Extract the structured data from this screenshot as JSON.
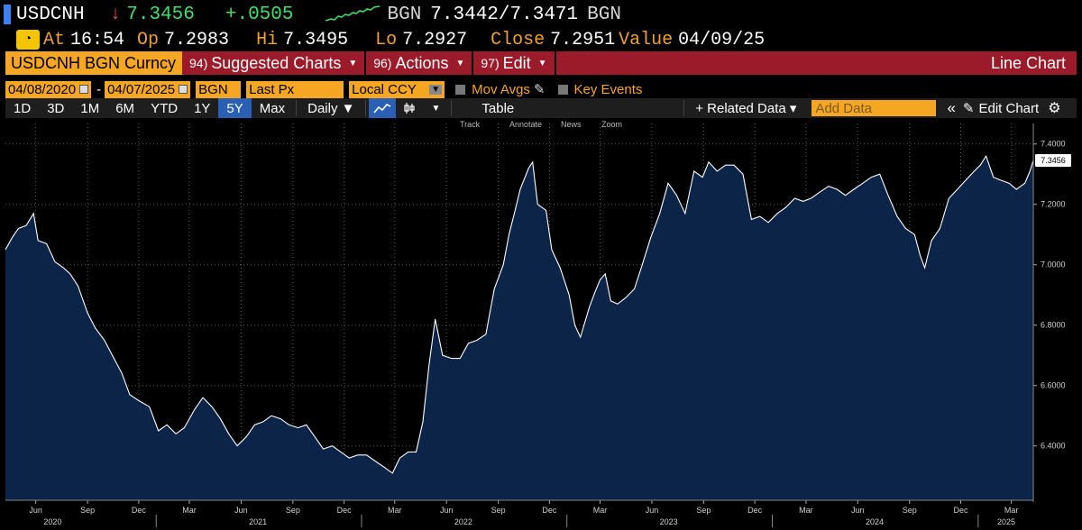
{
  "quote": {
    "ticker": "USDCNH",
    "arrow": "↓",
    "last": "7.3456",
    "change": "+.0505",
    "bid_source": "BGN",
    "bid_ask": "7.3442/7.3471",
    "ask_source": "BGN"
  },
  "detail": {
    "at_label": "At",
    "at_value": "16:54",
    "open_label": "Op",
    "open_value": "7.2983",
    "high_label": "Hi",
    "high_value": "7.3495",
    "low_label": "Lo",
    "low_value": "7.2927",
    "close_label": "Close",
    "close_value": "7.2951",
    "value_label": "Value",
    "value_date": "04/09/25"
  },
  "menubar": {
    "security": "USDCNH BGN Curncy",
    "suggested": {
      "num": "94)",
      "label": "Suggested Charts"
    },
    "actions": {
      "num": "96)",
      "label": "Actions"
    },
    "edit": {
      "num": "97)",
      "label": "Edit"
    },
    "chart_type": "Line Chart"
  },
  "params": {
    "start_date": "04/08/2020",
    "end_date": "04/07/2025",
    "source": "BGN",
    "field": "Last Px",
    "currency": "Local CCY",
    "mov_avgs": "Mov Avgs",
    "key_events": "Key Events"
  },
  "toolbar": {
    "ranges": [
      "1D",
      "3D",
      "1M",
      "6M",
      "YTD",
      "1Y",
      "5Y",
      "Max"
    ],
    "selected_range": "5Y",
    "frequency": "Daily ▼",
    "table": "Table",
    "related": "+ Related Data ▾",
    "add_data_placeholder": "Add Data",
    "collapse": "«",
    "edit_chart": "Edit Chart",
    "settings_icon": "gear-icon"
  },
  "chart_tools": [
    "Track",
    "Annotate",
    "News",
    "Zoom"
  ],
  "chart_data": {
    "type": "area",
    "x_range": [
      "2020-04-08",
      "2025-04-09"
    ],
    "ylim": [
      6.22,
      7.45
    ],
    "y_ticks": [
      "6.4000",
      "6.6000",
      "6.8000",
      "7.0000",
      "7.2000",
      "7.4000"
    ],
    "y_tick_values": [
      6.4,
      6.6,
      6.8,
      7.0,
      7.2,
      7.4
    ],
    "last_value_label": "7.3456",
    "month_ticks": [
      {
        "date": "2020-06-01",
        "label": "Jun"
      },
      {
        "date": "2020-09-01",
        "label": "Sep"
      },
      {
        "date": "2020-12-01",
        "label": "Dec"
      },
      {
        "date": "2021-03-01",
        "label": "Mar"
      },
      {
        "date": "2021-06-01",
        "label": "Jun"
      },
      {
        "date": "2021-09-01",
        "label": "Sep"
      },
      {
        "date": "2021-12-01",
        "label": "Dec"
      },
      {
        "date": "2022-03-01",
        "label": "Mar"
      },
      {
        "date": "2022-06-01",
        "label": "Jun"
      },
      {
        "date": "2022-09-01",
        "label": "Sep"
      },
      {
        "date": "2022-12-01",
        "label": "Dec"
      },
      {
        "date": "2023-03-01",
        "label": "Mar"
      },
      {
        "date": "2023-06-01",
        "label": "Jun"
      },
      {
        "date": "2023-09-01",
        "label": "Sep"
      },
      {
        "date": "2023-12-01",
        "label": "Dec"
      },
      {
        "date": "2024-03-01",
        "label": "Mar"
      },
      {
        "date": "2024-06-01",
        "label": "Jun"
      },
      {
        "date": "2024-09-01",
        "label": "Sep"
      },
      {
        "date": "2024-12-01",
        "label": "Dec"
      },
      {
        "date": "2025-03-01",
        "label": "Mar"
      }
    ],
    "year_ticks": [
      {
        "date": "2020-07-01",
        "label": "2020"
      },
      {
        "date": "2021-07-01",
        "label": "2021"
      },
      {
        "date": "2022-07-01",
        "label": "2022"
      },
      {
        "date": "2023-07-01",
        "label": "2023"
      },
      {
        "date": "2024-07-01",
        "label": "2024"
      },
      {
        "date": "2025-02-20",
        "label": "2025"
      }
    ],
    "year_boundaries": [
      "2021-01-01",
      "2022-01-01",
      "2023-01-01",
      "2024-01-01",
      "2025-01-01"
    ],
    "series": [
      {
        "points": [
          [
            "2020-04-08",
            7.05
          ],
          [
            "2020-04-20",
            7.09
          ],
          [
            "2020-05-01",
            7.12
          ],
          [
            "2020-05-15",
            7.13
          ],
          [
            "2020-05-28",
            7.17
          ],
          [
            "2020-06-05",
            7.08
          ],
          [
            "2020-06-20",
            7.07
          ],
          [
            "2020-07-05",
            7.01
          ],
          [
            "2020-07-20",
            6.99
          ],
          [
            "2020-08-01",
            6.97
          ],
          [
            "2020-08-15",
            6.93
          ],
          [
            "2020-09-01",
            6.84
          ],
          [
            "2020-09-15",
            6.79
          ],
          [
            "2020-10-01",
            6.75
          ],
          [
            "2020-10-15",
            6.7
          ],
          [
            "2020-11-01",
            6.64
          ],
          [
            "2020-11-15",
            6.57
          ],
          [
            "2020-12-01",
            6.55
          ],
          [
            "2020-12-20",
            6.53
          ],
          [
            "2021-01-05",
            6.45
          ],
          [
            "2021-01-20",
            6.47
          ],
          [
            "2021-02-05",
            6.44
          ],
          [
            "2021-02-20",
            6.46
          ],
          [
            "2021-03-10",
            6.52
          ],
          [
            "2021-03-25",
            6.56
          ],
          [
            "2021-04-10",
            6.53
          ],
          [
            "2021-04-25",
            6.49
          ],
          [
            "2021-05-10",
            6.44
          ],
          [
            "2021-05-25",
            6.4
          ],
          [
            "2021-06-10",
            6.43
          ],
          [
            "2021-06-25",
            6.47
          ],
          [
            "2021-07-10",
            6.48
          ],
          [
            "2021-07-25",
            6.5
          ],
          [
            "2021-08-10",
            6.49
          ],
          [
            "2021-08-25",
            6.47
          ],
          [
            "2021-09-10",
            6.46
          ],
          [
            "2021-09-25",
            6.47
          ],
          [
            "2021-10-10",
            6.43
          ],
          [
            "2021-10-25",
            6.39
          ],
          [
            "2021-11-10",
            6.4
          ],
          [
            "2021-11-25",
            6.38
          ],
          [
            "2021-12-10",
            6.36
          ],
          [
            "2021-12-25",
            6.37
          ],
          [
            "2022-01-10",
            6.37
          ],
          [
            "2022-01-25",
            6.35
          ],
          [
            "2022-02-10",
            6.33
          ],
          [
            "2022-02-25",
            6.31
          ],
          [
            "2022-03-10",
            6.36
          ],
          [
            "2022-03-25",
            6.38
          ],
          [
            "2022-04-08",
            6.38
          ],
          [
            "2022-04-20",
            6.48
          ],
          [
            "2022-05-01",
            6.67
          ],
          [
            "2022-05-12",
            6.82
          ],
          [
            "2022-05-25",
            6.7
          ],
          [
            "2022-06-10",
            6.69
          ],
          [
            "2022-06-25",
            6.69
          ],
          [
            "2022-07-10",
            6.74
          ],
          [
            "2022-07-25",
            6.75
          ],
          [
            "2022-08-10",
            6.77
          ],
          [
            "2022-08-25",
            6.92
          ],
          [
            "2022-09-10",
            7.0
          ],
          [
            "2022-09-20",
            7.1
          ],
          [
            "2022-10-01",
            7.18
          ],
          [
            "2022-10-10",
            7.25
          ],
          [
            "2022-10-25",
            7.32
          ],
          [
            "2022-11-01",
            7.34
          ],
          [
            "2022-11-10",
            7.2
          ],
          [
            "2022-11-25",
            7.18
          ],
          [
            "2022-12-05",
            7.05
          ],
          [
            "2022-12-20",
            6.99
          ],
          [
            "2023-01-05",
            6.9
          ],
          [
            "2023-01-15",
            6.8
          ],
          [
            "2023-01-25",
            6.76
          ],
          [
            "2023-02-10",
            6.86
          ],
          [
            "2023-02-20",
            6.91
          ],
          [
            "2023-03-01",
            6.95
          ],
          [
            "2023-03-10",
            6.97
          ],
          [
            "2023-03-20",
            6.88
          ],
          [
            "2023-04-01",
            6.87
          ],
          [
            "2023-04-15",
            6.89
          ],
          [
            "2023-05-01",
            6.92
          ],
          [
            "2023-05-15",
            7.0
          ],
          [
            "2023-05-30",
            7.09
          ],
          [
            "2023-06-15",
            7.17
          ],
          [
            "2023-06-30",
            7.27
          ],
          [
            "2023-07-15",
            7.23
          ],
          [
            "2023-07-30",
            7.17
          ],
          [
            "2023-08-15",
            7.31
          ],
          [
            "2023-08-30",
            7.29
          ],
          [
            "2023-09-10",
            7.34
          ],
          [
            "2023-09-25",
            7.31
          ],
          [
            "2023-10-10",
            7.33
          ],
          [
            "2023-10-25",
            7.33
          ],
          [
            "2023-11-10",
            7.3
          ],
          [
            "2023-11-25",
            7.15
          ],
          [
            "2023-12-10",
            7.16
          ],
          [
            "2023-12-25",
            7.14
          ],
          [
            "2024-01-10",
            7.17
          ],
          [
            "2024-01-25",
            7.19
          ],
          [
            "2024-02-10",
            7.22
          ],
          [
            "2024-02-25",
            7.21
          ],
          [
            "2024-03-10",
            7.22
          ],
          [
            "2024-03-25",
            7.24
          ],
          [
            "2024-04-10",
            7.26
          ],
          [
            "2024-04-25",
            7.25
          ],
          [
            "2024-05-10",
            7.23
          ],
          [
            "2024-05-25",
            7.25
          ],
          [
            "2024-06-10",
            7.27
          ],
          [
            "2024-06-25",
            7.29
          ],
          [
            "2024-07-10",
            7.3
          ],
          [
            "2024-07-25",
            7.23
          ],
          [
            "2024-08-10",
            7.16
          ],
          [
            "2024-08-25",
            7.12
          ],
          [
            "2024-09-10",
            7.1
          ],
          [
            "2024-09-20",
            7.03
          ],
          [
            "2024-09-28",
            6.99
          ],
          [
            "2024-10-10",
            7.08
          ],
          [
            "2024-10-25",
            7.12
          ],
          [
            "2024-11-10",
            7.22
          ],
          [
            "2024-11-25",
            7.25
          ],
          [
            "2024-12-10",
            7.28
          ],
          [
            "2024-12-25",
            7.31
          ],
          [
            "2025-01-05",
            7.33
          ],
          [
            "2025-01-15",
            7.36
          ],
          [
            "2025-01-28",
            7.29
          ],
          [
            "2025-02-10",
            7.28
          ],
          [
            "2025-02-25",
            7.27
          ],
          [
            "2025-03-10",
            7.25
          ],
          [
            "2025-03-25",
            7.27
          ],
          [
            "2025-04-03",
            7.31
          ],
          [
            "2025-04-09",
            7.3456
          ]
        ]
      }
    ],
    "colors": {
      "area": "#0c2447",
      "line": "#ffffff",
      "grid": "#5a5a5a",
      "axis_text": "#d0d0d0"
    }
  }
}
